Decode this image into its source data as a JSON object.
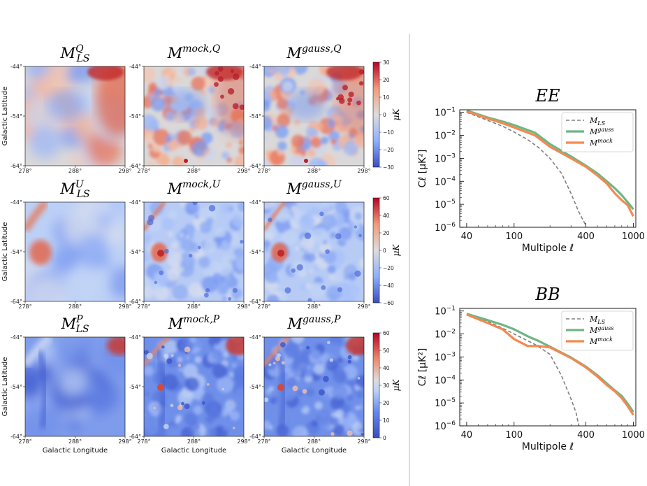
{
  "colors": {
    "cmap_low": "#3b4cc0",
    "cmap_mid": "#dddcdc",
    "cmap_high": "#b40426",
    "ls_line": "#808080",
    "gauss_line": "#6fb586",
    "mock_line": "#f4894f",
    "divider": "#bbbbbb"
  },
  "maps": {
    "row_titles": [
      [
        {
          "base": "M",
          "sup": "Q",
          "sub": "LS"
        },
        {
          "base": "M",
          "sup": "mock,Q",
          "sub": ""
        },
        {
          "base": "M",
          "sup": "gauss,Q",
          "sub": ""
        }
      ],
      [
        {
          "base": "M",
          "sup": "U",
          "sub": "LS"
        },
        {
          "base": "M",
          "sup": "mock,U",
          "sub": ""
        },
        {
          "base": "M",
          "sup": "gauss,U",
          "sub": ""
        }
      ],
      [
        {
          "base": "M",
          "sup": "P",
          "sub": "LS"
        },
        {
          "base": "M",
          "sup": "mock,P",
          "sub": ""
        },
        {
          "base": "M",
          "sup": "gauss,P",
          "sub": ""
        }
      ]
    ],
    "lat_ticks": [
      "-44°",
      "-54°",
      "-64°"
    ],
    "lon_ticks": [
      "278°",
      "288°",
      "298°"
    ],
    "ylabel": "Galactic Latitude",
    "xlabel": "Galactic Longitude",
    "colorbar_label": "μK",
    "colorbars": [
      {
        "vmin": -30,
        "vmax": 30,
        "ticks": [
          "30",
          "20",
          "10",
          "0",
          "−10",
          "−20",
          "−30"
        ]
      },
      {
        "vmin": -60,
        "vmax": 60,
        "ticks": [
          "60",
          "40",
          "20",
          "0",
          "−20",
          "−40",
          "−60"
        ]
      },
      {
        "vmin": 0,
        "vmax": 60,
        "ticks": [
          "60",
          "50",
          "40",
          "30",
          "20",
          "10",
          "0"
        ]
      }
    ]
  },
  "chart_data": [
    {
      "type": "line",
      "title": "EE",
      "xlabel": "Multipole ℓ",
      "ylabel": "Cℓ [μK²]",
      "xscale": "log",
      "yscale": "log",
      "xlim": [
        35,
        1050
      ],
      "ylim": [
        1e-06,
        0.13
      ],
      "xticks": [
        {
          "v": 40,
          "label": "40"
        },
        {
          "v": 100,
          "label": "100"
        },
        {
          "v": 400,
          "label": "400"
        },
        {
          "v": 1000,
          "label": "1000"
        }
      ],
      "yticks": [
        {
          "v": 0.1,
          "base": "10",
          "exp": "−1"
        },
        {
          "v": 0.01,
          "base": "10",
          "exp": "−2"
        },
        {
          "v": 0.001,
          "base": "10",
          "exp": "−3"
        },
        {
          "v": 0.0001,
          "base": "10",
          "exp": "−4"
        },
        {
          "v": 1e-05,
          "base": "10",
          "exp": "−5"
        },
        {
          "v": 1e-06,
          "base": "10",
          "exp": "−6"
        }
      ],
      "legend": [
        {
          "base": "M",
          "sub": "LS"
        },
        {
          "base": "M",
          "sup": "gauss"
        },
        {
          "base": "M",
          "sup": "mock"
        }
      ],
      "series": [
        {
          "name": "M_LS",
          "style": "dashed",
          "x": [
            40,
            60,
            80,
            100,
            130,
            160,
            200,
            250,
            300,
            350,
            400
          ],
          "y": [
            0.1,
            0.045,
            0.025,
            0.014,
            0.0065,
            0.003,
            0.001,
            0.00022,
            3e-05,
            4.5e-06,
            1.2e-06
          ]
        },
        {
          "name": "M^gauss",
          "style": "solid",
          "x": [
            40,
            60,
            80,
            100,
            150,
            200,
            300,
            400,
            500,
            600,
            700,
            800,
            900,
            1000
          ],
          "y": [
            0.12,
            0.06,
            0.04,
            0.028,
            0.013,
            0.0042,
            0.0012,
            0.00048,
            0.00022,
            0.0001,
            5e-05,
            2.5e-05,
            1.2e-05,
            6e-06
          ]
        },
        {
          "name": "M^mock",
          "style": "solid",
          "x": [
            40,
            60,
            80,
            100,
            150,
            200,
            300,
            400,
            500,
            600,
            700,
            800,
            900,
            1000
          ],
          "y": [
            0.11,
            0.055,
            0.034,
            0.022,
            0.01,
            0.0032,
            0.001,
            0.00043,
            0.00018,
            8e-05,
            3e-05,
            1.5e-05,
            9e-06,
            3e-06
          ]
        }
      ]
    },
    {
      "type": "line",
      "title": "BB",
      "xlabel": "Multipole ℓ",
      "ylabel": "Cℓ [μK²]",
      "xscale": "log",
      "yscale": "log",
      "xlim": [
        35,
        1050
      ],
      "ylim": [
        1e-06,
        0.13
      ],
      "xticks": [
        {
          "v": 40,
          "label": "40"
        },
        {
          "v": 100,
          "label": "100"
        },
        {
          "v": 400,
          "label": "400"
        },
        {
          "v": 1000,
          "label": "1000"
        }
      ],
      "yticks": [
        {
          "v": 0.1,
          "base": "10",
          "exp": "−1"
        },
        {
          "v": 0.01,
          "base": "10",
          "exp": "−2"
        },
        {
          "v": 0.001,
          "base": "10",
          "exp": "−3"
        },
        {
          "v": 0.0001,
          "base": "10",
          "exp": "−4"
        },
        {
          "v": 1e-05,
          "base": "10",
          "exp": "−5"
        },
        {
          "v": 1e-06,
          "base": "10",
          "exp": "−6"
        }
      ],
      "legend": [
        {
          "base": "M",
          "sub": "LS"
        },
        {
          "base": "M",
          "sup": "gauss"
        },
        {
          "base": "M",
          "sup": "mock"
        }
      ],
      "series": [
        {
          "name": "M_LS",
          "style": "dashed",
          "x": [
            40,
            60,
            80,
            100,
            150,
            200,
            250,
            300,
            330,
            350
          ],
          "y": [
            0.07,
            0.035,
            0.018,
            0.01,
            0.0035,
            0.0013,
            0.00015,
            1.5e-05,
            4e-06,
            1e-06
          ]
        },
        {
          "name": "M^gauss",
          "style": "solid",
          "x": [
            40,
            60,
            80,
            100,
            130,
            160,
            200,
            300,
            400,
            500,
            600,
            700,
            800,
            900,
            1000
          ],
          "y": [
            0.075,
            0.04,
            0.025,
            0.016,
            0.008,
            0.005,
            0.0028,
            0.00095,
            0.00038,
            0.00016,
            7e-05,
            3.5e-05,
            2e-05,
            9e-06,
            4e-06
          ]
        },
        {
          "name": "M^mock",
          "style": "solid",
          "x": [
            40,
            60,
            80,
            100,
            130,
            160,
            200,
            300,
            400,
            500,
            600,
            700,
            800,
            900,
            1000
          ],
          "y": [
            0.07,
            0.03,
            0.016,
            0.006,
            0.003,
            0.003,
            0.0026,
            0.0009,
            0.00035,
            0.00014,
            6e-05,
            3.2e-05,
            1.6e-05,
            7e-06,
            3e-06
          ]
        }
      ]
    }
  ]
}
